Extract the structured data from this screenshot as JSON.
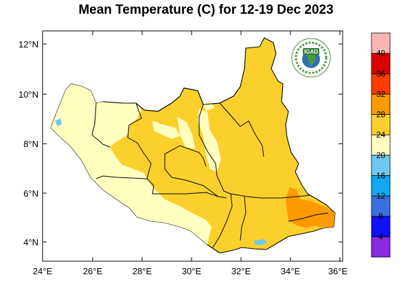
{
  "title": "Mean Temperature (C) for 12-19 Dec 2023",
  "map": {
    "lon_ticks": [
      "24°E",
      "26°E",
      "28°E",
      "30°E",
      "32°E",
      "34°E",
      "36°E"
    ],
    "lat_ticks": [
      "4°N",
      "6°N",
      "8°N",
      "10°N",
      "12°N"
    ],
    "lon_range": [
      24,
      36.8
    ],
    "lat_range": [
      3.3,
      12.5
    ]
  },
  "logo": {
    "text": "IGAD",
    "icon": "igad-logo-icon"
  },
  "colorbar": {
    "levels": [
      4,
      8,
      12,
      16,
      20,
      24,
      28,
      32,
      36,
      40
    ],
    "labels": [
      "4",
      "8",
      "12",
      "16",
      "20",
      "24",
      "28",
      "32",
      "36",
      "40"
    ],
    "colors": [
      "#8a2be2",
      "#1010ff",
      "#3a6fe0",
      "#10a8f0",
      "#70c8f0",
      "#ffffc0",
      "#fcd02c",
      "#fc9a00",
      "#fc3c00",
      "#dc0000",
      "#ffb4b4"
    ]
  },
  "legend_colors": {
    "cat_24_28": "#fcd02c",
    "cat_20_24": "#ffffc0",
    "cat_28_32": "#fc9a00",
    "cat_16_20": "#70c8f0"
  }
}
